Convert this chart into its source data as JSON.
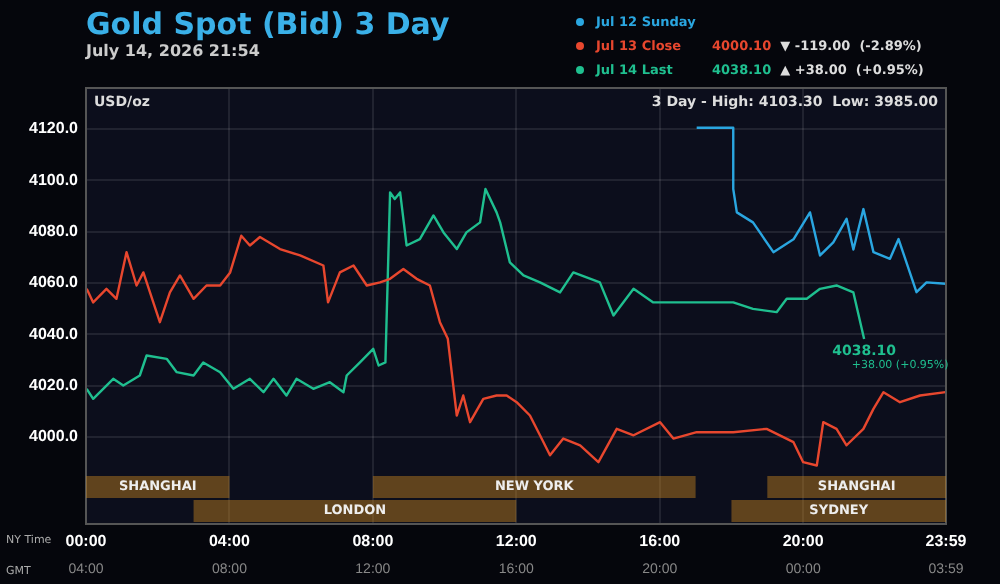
{
  "chart_data": {
    "type": "line",
    "title": "Gold Spot (Bid) 3 Day",
    "subtitle": "July 14, 2026 21:54",
    "ylabel": "USD/oz",
    "xlabel": "NY Time",
    "x2label": "GMT",
    "series": [
      {
        "name": "Jul 12 Sunday",
        "color": "#2aa6e0",
        "x": [
          17.03,
          18.05,
          18.05,
          18.15,
          18.6,
          19.17,
          19.73,
          20.19,
          20.47,
          20.84,
          21.21,
          21.4,
          21.68,
          21.96,
          22.42,
          22.66,
          23.16,
          23.44,
          23.97
        ],
        "values": [
          4120.5,
          4120.5,
          4096.6,
          4087.5,
          4083.6,
          4072,
          4077,
          4087.5,
          4070.7,
          4075.8,
          4085,
          4073,
          4088.8,
          4072,
          4069.4,
          4077.1,
          4056.4,
          4060.2,
          4059.7
        ]
      },
      {
        "name": "Jul 13 Close",
        "color": "#e8472e",
        "x": [
          0.02,
          0.2,
          0.57,
          0.85,
          1.13,
          1.41,
          1.6,
          2.06,
          2.34,
          2.62,
          3.0,
          3.36,
          3.74,
          4.02,
          4.33,
          4.57,
          4.85,
          5.41,
          5.97,
          6.62,
          6.75,
          7.08,
          7.46,
          7.83,
          8.2,
          8.48,
          8.85,
          9.22,
          9.59,
          9.87,
          10.09,
          10.34,
          10.52,
          10.71,
          11.08,
          11.45,
          11.73,
          12.01,
          12.38,
          12.66,
          12.94,
          13.31,
          13.78,
          14.29,
          14.8,
          15.27,
          16.01,
          16.38,
          17.03,
          18.05,
          18.98,
          19.73,
          20.0,
          20.38,
          20.56,
          20.93,
          21.21,
          21.68,
          21.96,
          22.24,
          22.7,
          23.26,
          23.97
        ],
        "values": [
          4057.7,
          4052.4,
          4057.7,
          4053.8,
          4072,
          4059,
          4064.1,
          4044.7,
          4056.3,
          4062.9,
          4053.8,
          4059,
          4059,
          4064.1,
          4078.4,
          4074.6,
          4077.9,
          4073.2,
          4070.7,
          4066.8,
          4052.4,
          4064.1,
          4066.8,
          4059,
          4060.2,
          4061.6,
          4065.4,
          4061.6,
          4059,
          4044.7,
          4038.2,
          4008.3,
          4016.1,
          4005.7,
          4014.8,
          4016.1,
          4016.1,
          4013.5,
          4008.3,
          4000.6,
          3992.8,
          3999.3,
          3996.7,
          3990.1,
          4003.1,
          4000.6,
          4005.7,
          3999.3,
          4001.8,
          4001.8,
          4003.1,
          3997.9,
          3990.1,
          3988.8,
          4005.7,
          4003.1,
          3996.7,
          4003.1,
          4010.9,
          4017.4,
          4013.5,
          4016.1,
          4017.4
        ]
      },
      {
        "name": "Jul 14 Last",
        "color": "#1fbf8f",
        "x": [
          0.02,
          0.2,
          0.76,
          1.04,
          1.5,
          1.69,
          2.25,
          2.53,
          3.0,
          3.27,
          3.74,
          4.11,
          4.57,
          4.95,
          5.23,
          5.59,
          5.87,
          6.34,
          6.8,
          7.18,
          7.27,
          7.64,
          8.01,
          8.16,
          8.35,
          8.48,
          8.61,
          8.76,
          8.94,
          9.31,
          9.69,
          9.97,
          10.34,
          10.61,
          10.99,
          11.14,
          11.45,
          11.55,
          11.82,
          12.2,
          12.66,
          13.22,
          13.59,
          14.33,
          14.71,
          15.27,
          15.82,
          16.94,
          18.05,
          18.6,
          19.26,
          19.54,
          20.1,
          20.47,
          20.93,
          21.4,
          21.7
        ],
        "values": [
          4018.7,
          4014.8,
          4022.6,
          4020,
          4023.9,
          4031.7,
          4030.4,
          4025.2,
          4023.9,
          4029,
          4025.2,
          4018.7,
          4022.6,
          4017.4,
          4022.6,
          4016.1,
          4022.6,
          4018.7,
          4021.3,
          4017.4,
          4023.9,
          4029,
          4034.3,
          4027.8,
          4029,
          4095.3,
          4092.7,
          4095.3,
          4074.6,
          4077.1,
          4086.3,
          4079.7,
          4073.2,
          4079.7,
          4083.6,
          4096.6,
          4087.5,
          4083.6,
          4068,
          4062.9,
          4060.2,
          4056.3,
          4064.1,
          4060.2,
          4047.3,
          4057.7,
          4052.4,
          4052.4,
          4052.4,
          4049.9,
          4048.6,
          4053.8,
          4053.8,
          4057.7,
          4059,
          4056.3,
          4038.1
        ]
      }
    ],
    "xlim": [
      0,
      23.983
    ],
    "xticks": [
      {
        "value": 0,
        "label": "00:00"
      },
      {
        "value": 4,
        "label": "04:00"
      },
      {
        "value": 8,
        "label": "08:00"
      },
      {
        "value": 12,
        "label": "12:00"
      },
      {
        "value": 16,
        "label": "16:00"
      },
      {
        "value": 20,
        "label": "20:00"
      },
      {
        "value": 23.983,
        "label": "23:59"
      }
    ],
    "x2lim": [
      "2026-07-14T04:00",
      "2026-07-15T03:59"
    ],
    "x2ticks": [
      {
        "value": "2026-07-14T04:00",
        "label": "04:00"
      },
      {
        "value": "2026-07-14T08:00",
        "label": "08:00"
      },
      {
        "value": "2026-07-14T12:00",
        "label": "12:00"
      },
      {
        "value": "2026-07-14T16:00",
        "label": "16:00"
      },
      {
        "value": "2026-07-14T20:00",
        "label": "20:00"
      },
      {
        "value": "2026-07-15T00:00",
        "label": "00:00"
      },
      {
        "value": "2026-07-15T03:59",
        "label": "03:59"
      }
    ],
    "ylim": [
      3966,
      4136
    ],
    "yticks": [
      {
        "value": 4000,
        "label": "4000.0"
      },
      {
        "value": 4020,
        "label": "4020.0"
      },
      {
        "value": 4040,
        "label": "4040.0"
      },
      {
        "value": 4060,
        "label": "4060.0"
      },
      {
        "value": 4080,
        "label": "4080.0"
      },
      {
        "value": 4100,
        "label": "4100.0"
      },
      {
        "value": 4120,
        "label": "4120.0"
      }
    ],
    "grid": true,
    "legend": "top right",
    "marker": "none",
    "line_style": "solid",
    "bands": [
      {
        "axis": "x",
        "from": 0,
        "to": 4,
        "label": "SHANGHAI",
        "color": "#c8841e"
      },
      {
        "axis": "x",
        "from": 3,
        "to": 12,
        "label": "LONDON",
        "color": "#c8841e"
      },
      {
        "axis": "x",
        "from": 8,
        "to": 17,
        "label": "NEW YORK",
        "color": "#c8841e"
      },
      {
        "axis": "x",
        "from": 19,
        "to": 23.983,
        "label": "SHANGHAI",
        "color": "#c8841e"
      },
      {
        "axis": "x",
        "from": 18,
        "to": 23.983,
        "label": "SYDNEY",
        "color": "#c8841e"
      }
    ],
    "annotations": [
      "3 Day - High: 4103.30  Low: 3985.00",
      "4000.10  ▼ -119.00  (-2.89%)",
      "4038.10  ▲ +38.00  (+0.95%)",
      {
        "text": "4038.10",
        "x": 21.7,
        "y": 4038.1
      },
      {
        "text": "+38.00 (+0.95%)",
        "x": 21.7,
        "y": 4038.1
      }
    ]
  }
}
